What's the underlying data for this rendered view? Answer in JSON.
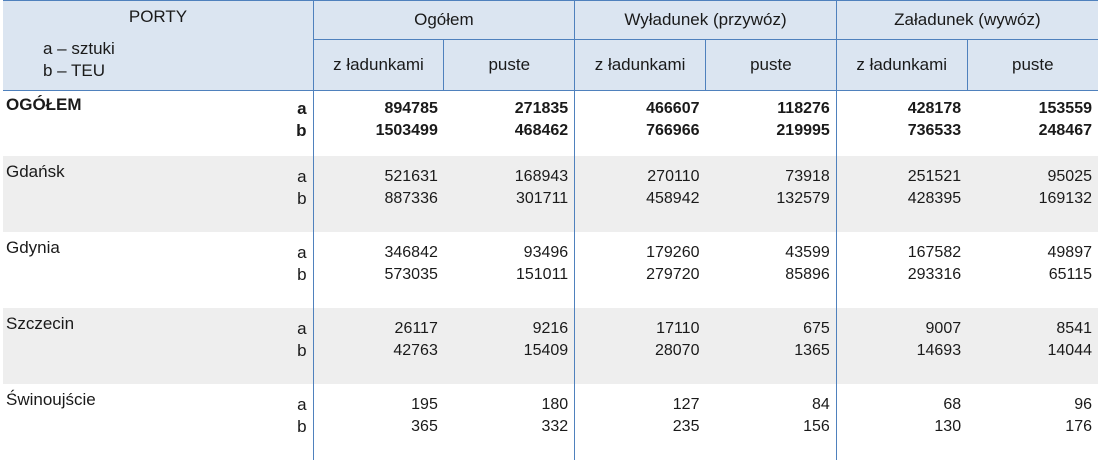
{
  "header": {
    "porty": "PORTY",
    "legend_a": "a – sztuki",
    "legend_b": "b – TEU",
    "groups": [
      "Ogółem",
      "Wyładunek (przywóz)",
      "Załadunek (wywóz)"
    ],
    "sub": [
      "z ładunkami",
      "puste",
      "z ładunkami",
      "puste",
      "z ładunkami",
      "puste"
    ]
  },
  "rows": [
    {
      "name": "OGÓŁEM",
      "a_label": "a",
      "b_label": "b",
      "a": [
        "894785",
        "271835",
        "466607",
        "118276",
        "428178",
        "153559"
      ],
      "b": [
        "1503499",
        "468462",
        "766966",
        "219995",
        "736533",
        "248467"
      ]
    },
    {
      "name": "Gdańsk",
      "a_label": "a",
      "b_label": "b",
      "a": [
        "521631",
        "168943",
        "270110",
        "73918",
        "251521",
        "95025"
      ],
      "b": [
        "887336",
        "301711",
        "458942",
        "132579",
        "428395",
        "169132"
      ]
    },
    {
      "name": "Gdynia",
      "a_label": "a",
      "b_label": "b",
      "a": [
        "346842",
        "93496",
        "179260",
        "43599",
        "167582",
        "49897"
      ],
      "b": [
        "573035",
        "151011",
        "279720",
        "85896",
        "293316",
        "65115"
      ]
    },
    {
      "name": "Szczecin",
      "a_label": "a",
      "b_label": "b",
      "a": [
        "26117",
        "9216",
        "17110",
        "675",
        "9007",
        "8541"
      ],
      "b": [
        "42763",
        "15409",
        "28070",
        "1365",
        "14693",
        "14044"
      ]
    },
    {
      "name": "Świnoujście",
      "a_label": "a",
      "b_label": "b",
      "a": [
        "195",
        "180",
        "127",
        "84",
        "68",
        "96"
      ],
      "b": [
        "365",
        "332",
        "235",
        "156",
        "130",
        "176"
      ]
    }
  ]
}
